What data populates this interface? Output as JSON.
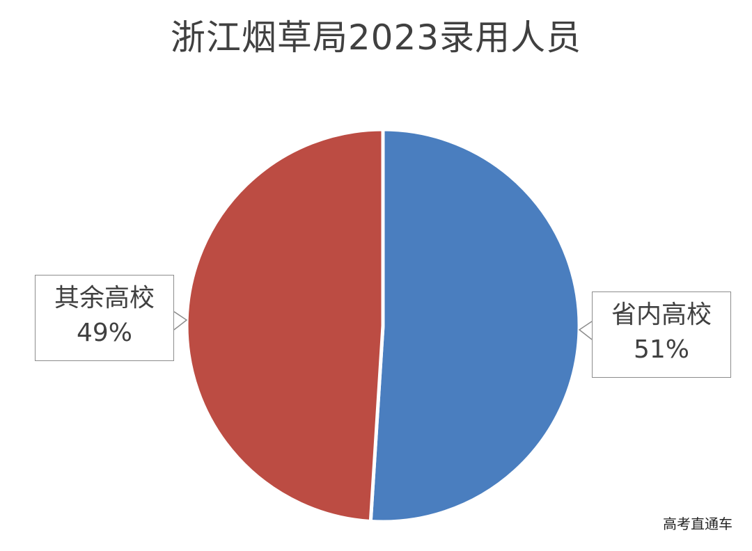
{
  "watermark": "高考直通车",
  "colors": {
    "provincial": "#4a7ebf",
    "others": "#bc4c43",
    "title": "#404040"
  },
  "chart_data": {
    "type": "pie",
    "title": "浙江烟草局2023录用人员",
    "start_angle_deg": 0,
    "direction": "clockwise",
    "slices": [
      {
        "label": "省内高校",
        "value": 51,
        "value_label": "51%",
        "color": "#4a7ebf"
      },
      {
        "label": "其余高校",
        "value": 49,
        "value_label": "49%",
        "color": "#bc4c43"
      }
    ]
  }
}
